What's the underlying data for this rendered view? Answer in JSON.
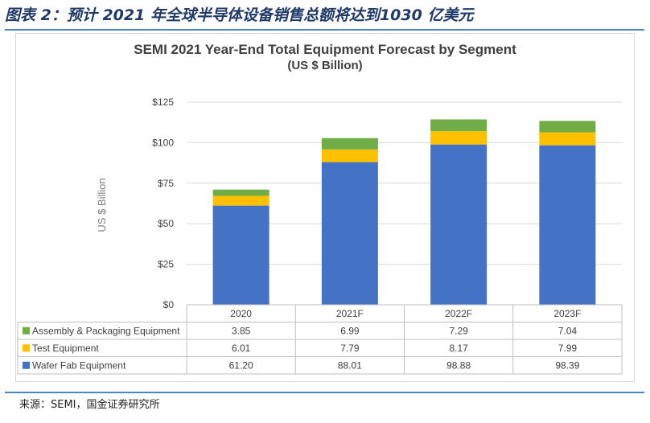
{
  "caption": "图表 2：预计 2021 年全球半导体设备销售总额将达到1030 亿美元",
  "source": "来源：SEMI，国金证券研究所",
  "colors": {
    "wafer": "#4472c4",
    "test": "#ffc000",
    "assembly": "#70ad47",
    "rule": "#4a86c5",
    "caption": "#1f3a68"
  },
  "chart_data": {
    "type": "bar",
    "stacked": true,
    "title": "SEMI 2021 Year-End Total Equipment Forecast by Segment",
    "subtitle": "(US $ Billion)",
    "ylabel": "US $ Billion",
    "ylim": [
      0,
      125
    ],
    "yticks": [
      "$0",
      "$25",
      "$50",
      "$75",
      "$100",
      "$125"
    ],
    "ytick_values": [
      0,
      25,
      50,
      75,
      100,
      125
    ],
    "grid": true,
    "legend": "data-table-left",
    "categories": [
      "2020",
      "2021F",
      "2022F",
      "2023F"
    ],
    "series": [
      {
        "name": "Wafer Fab Equipment",
        "color": "#4472c4",
        "values": [
          61.2,
          88.01,
          98.88,
          98.39
        ],
        "labels": [
          "61.20",
          "88.01",
          "98.88",
          "98.39"
        ]
      },
      {
        "name": "Test Equipment",
        "color": "#ffc000",
        "values": [
          6.01,
          7.79,
          8.17,
          7.99
        ],
        "labels": [
          "6.01",
          "7.79",
          "8.17",
          "7.99"
        ]
      },
      {
        "name": "Assembly & Packaging Equipment",
        "color": "#70ad47",
        "values": [
          3.85,
          6.99,
          7.29,
          7.04
        ],
        "labels": [
          "3.85",
          "6.99",
          "7.29",
          "7.04"
        ]
      }
    ],
    "table_order": [
      2,
      1,
      0
    ]
  }
}
